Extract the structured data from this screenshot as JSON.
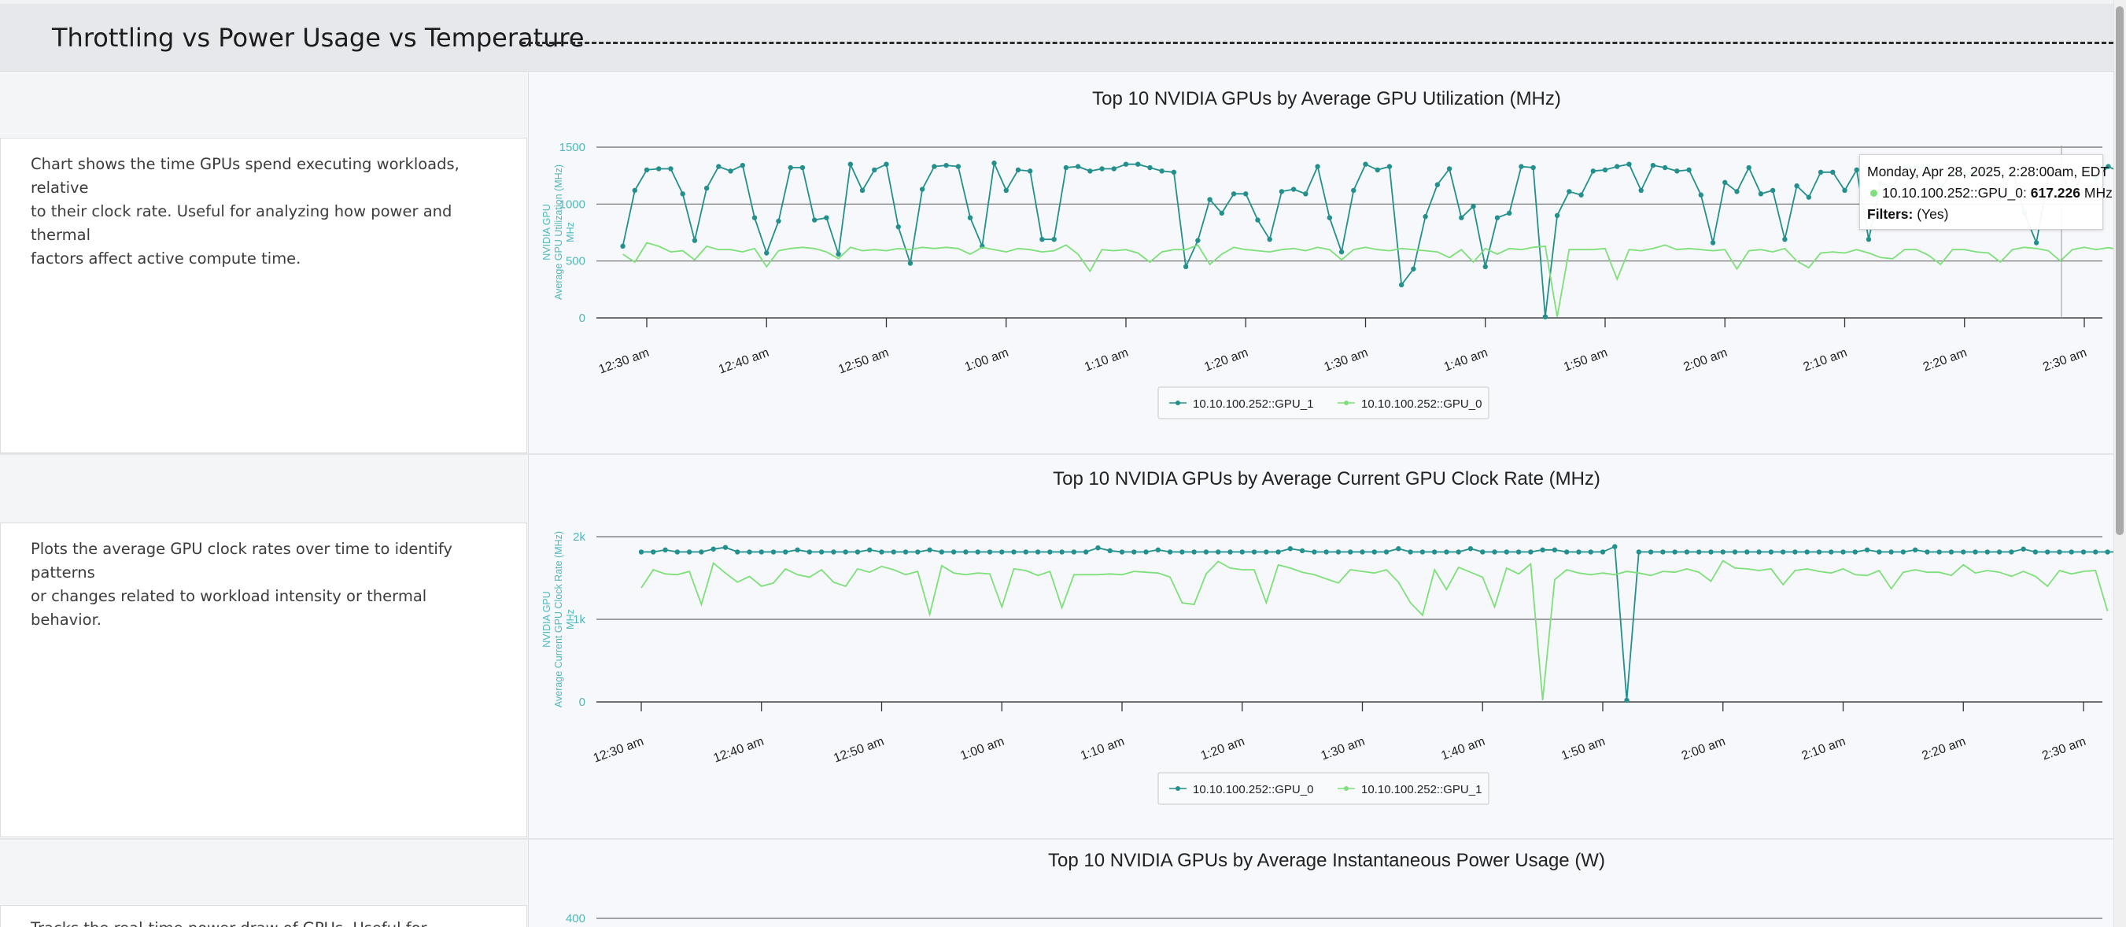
{
  "section": {
    "title": "Throttling vs Power Usage vs Temperature"
  },
  "colors": {
    "series_dark": "#23908e",
    "series_light": "#7ee07a",
    "axis_text": "#4fb7bd",
    "gridline": "#555555"
  },
  "panels": [
    {
      "description": "Chart shows the time GPUs spend executing workloads, relative to their clock rate. Useful for analyzing how power and thermal factors affect active compute time.",
      "description_lines": [
        "Chart shows the time GPUs spend executing workloads, relative",
        "to their clock rate. Useful for analyzing how power and thermal",
        "factors affect active compute time."
      ]
    },
    {
      "description": "Plots the average GPU clock rates over time to identify patterns or changes related to workload intensity or thermal behavior.",
      "description_lines": [
        "Plots the average GPU clock rates over time to identify patterns",
        "or changes related to workload intensity or thermal behavior."
      ]
    },
    {
      "description": "Tracks the real-time power draw of GPUs. Useful for assessing",
      "description_lines": [
        "Tracks the real-time power draw of GPUs. Useful for assessing"
      ]
    }
  ],
  "tooltip": {
    "date": "Monday, Apr 28, 2025, 2:28:00am, EDT",
    "series_label": "10.10.100.252::GPU_0: ",
    "value": "617.226",
    "unit": " MHz",
    "filters_label": "Filters:",
    "filters_value": " (Yes)"
  },
  "chart_data": [
    {
      "type": "line",
      "title": "Top 10 NVIDIA GPUs by Average GPU Utilization (MHz)",
      "ylabel_lines": [
        "NVIDIA GPU",
        "Average GPU Utilization (MHz)",
        "MHz"
      ],
      "ylim": [
        0,
        1500
      ],
      "yticks": [
        0,
        500,
        1000,
        1500
      ],
      "ytick_labels": [
        "0",
        "500",
        "1000",
        "1500"
      ],
      "x_start": "12:28 am",
      "x_step_minutes": 1,
      "x_tick_labels": [
        "12:30 am",
        "12:40 am",
        "12:50 am",
        "1:00 am",
        "1:10 am",
        "1:20 am",
        "1:30 am",
        "1:40 am",
        "1:50 am",
        "2:00 am",
        "2:10 am",
        "2:20 am",
        "2:30 am"
      ],
      "legend": [
        "10.10.100.252::GPU_1",
        "10.10.100.252::GPU_0"
      ],
      "series": [
        {
          "name": "10.10.100.252::GPU_1",
          "color": "#23908e",
          "markers": true,
          "values": [
            630,
            1120,
            1300,
            1310,
            1310,
            1090,
            680,
            1140,
            1330,
            1290,
            1340,
            880,
            570,
            850,
            1320,
            1320,
            860,
            880,
            560,
            1350,
            1120,
            1300,
            1350,
            800,
            480,
            1130,
            1330,
            1340,
            1330,
            880,
            630,
            1360,
            1120,
            1300,
            1290,
            690,
            690,
            1320,
            1330,
            1290,
            1310,
            1310,
            1350,
            1350,
            1320,
            1290,
            1280,
            450,
            680,
            1040,
            920,
            1090,
            1090,
            860,
            690,
            1110,
            1130,
            1090,
            1330,
            880,
            580,
            1120,
            1350,
            1300,
            1330,
            290,
            430,
            890,
            1170,
            1310,
            880,
            980,
            450,
            880,
            920,
            1330,
            1320,
            10,
            900,
            1110,
            1080,
            1290,
            1300,
            1330,
            1350,
            1120,
            1340,
            1320,
            1290,
            1300,
            1080,
            660,
            1190,
            1110,
            1320,
            1090,
            1120,
            690,
            1160,
            1060,
            1280,
            1280,
            1120,
            1300,
            690,
            1180,
            1150,
            1320,
            1320,
            1330,
            1140,
            1280,
            1270,
            1280,
            1290,
            1060,
            1300,
            920,
            660,
            1250,
            1290,
            1080,
            1300,
            1230,
            1330,
            1280,
            1300,
            930,
            340
          ]
        },
        {
          "name": "10.10.100.252::GPU_0",
          "color": "#7ee07a",
          "markers": false,
          "values": [
            560,
            490,
            660,
            630,
            580,
            590,
            510,
            630,
            600,
            600,
            580,
            610,
            450,
            590,
            610,
            620,
            610,
            580,
            520,
            620,
            590,
            600,
            590,
            610,
            600,
            620,
            610,
            620,
            610,
            560,
            620,
            600,
            580,
            610,
            600,
            580,
            590,
            640,
            560,
            410,
            600,
            590,
            600,
            570,
            490,
            580,
            600,
            600,
            640,
            470,
            560,
            620,
            600,
            590,
            580,
            600,
            610,
            590,
            620,
            600,
            510,
            600,
            620,
            600,
            590,
            610,
            600,
            590,
            580,
            530,
            600,
            490,
            610,
            560,
            610,
            600,
            620,
            630,
            10,
            600,
            600,
            600,
            610,
            340,
            600,
            590,
            610,
            640,
            600,
            610,
            600,
            590,
            600,
            430,
            590,
            600,
            580,
            610,
            500,
            440,
            570,
            580,
            570,
            600,
            570,
            530,
            520,
            600,
            600,
            550,
            470,
            600,
            600,
            580,
            570,
            490,
            600,
            620,
            610,
            590,
            500,
            600,
            620,
            600,
            617,
            600
          ]
        }
      ]
    },
    {
      "type": "line",
      "title": "Top 10 NVIDIA GPUs by Average Current GPU Clock Rate (MHz)",
      "ylabel_lines": [
        "NVIDIA GPU",
        "Average Current GPU Clock Rate (MHz)",
        "MHz"
      ],
      "ylim": [
        0,
        2000
      ],
      "yticks": [
        0,
        1000,
        2000
      ],
      "ytick_labels": [
        "0",
        "1k",
        "2k"
      ],
      "x_start": "12:30 am",
      "x_step_minutes": 1,
      "x_tick_labels": [
        "12:30 am",
        "12:40 am",
        "12:50 am",
        "1:00 am",
        "1:10 am",
        "1:20 am",
        "1:30 am",
        "1:40 am",
        "1:50 am",
        "2:00 am",
        "2:10 am",
        "2:20 am",
        "2:30 am"
      ],
      "legend": [
        "10.10.100.252::GPU_0",
        "10.10.100.252::GPU_1"
      ],
      "series": [
        {
          "name": "10.10.100.252::GPU_0",
          "color": "#23908e",
          "markers": true,
          "values": [
            1815,
            1815,
            1840,
            1815,
            1815,
            1815,
            1850,
            1870,
            1815,
            1815,
            1815,
            1815,
            1815,
            1840,
            1815,
            1815,
            1815,
            1815,
            1815,
            1840,
            1815,
            1815,
            1815,
            1815,
            1840,
            1815,
            1815,
            1815,
            1815,
            1815,
            1815,
            1815,
            1815,
            1815,
            1815,
            1815,
            1815,
            1815,
            1865,
            1830,
            1815,
            1815,
            1815,
            1840,
            1815,
            1815,
            1815,
            1815,
            1815,
            1815,
            1815,
            1815,
            1815,
            1815,
            1855,
            1830,
            1815,
            1815,
            1815,
            1815,
            1815,
            1815,
            1815,
            1855,
            1815,
            1815,
            1815,
            1815,
            1815,
            1855,
            1815,
            1815,
            1815,
            1815,
            1815,
            1840,
            1840,
            1815,
            1815,
            1815,
            1815,
            1880,
            20,
            1815,
            1815,
            1815,
            1815,
            1815,
            1815,
            1815,
            1815,
            1815,
            1815,
            1815,
            1815,
            1815,
            1815,
            1815,
            1815,
            1815,
            1815,
            1815,
            1840,
            1815,
            1815,
            1815,
            1840,
            1815,
            1815,
            1815,
            1815,
            1815,
            1815,
            1815,
            1815,
            1850,
            1815,
            1815,
            1815,
            1815,
            1815,
            1815,
            1815,
            1815,
            1815,
            1815,
            1815,
            1815,
            1815,
            1850
          ]
        },
        {
          "name": "10.10.100.252::GPU_1",
          "color": "#7ee07a",
          "markers": false,
          "values": [
            1380,
            1600,
            1550,
            1540,
            1580,
            1180,
            1680,
            1560,
            1450,
            1520,
            1400,
            1440,
            1610,
            1540,
            1510,
            1600,
            1450,
            1400,
            1610,
            1570,
            1640,
            1600,
            1540,
            1580,
            1060,
            1650,
            1560,
            1540,
            1560,
            1550,
            1150,
            1610,
            1590,
            1530,
            1580,
            1140,
            1540,
            1540,
            1540,
            1550,
            1540,
            1580,
            1570,
            1560,
            1510,
            1200,
            1180,
            1550,
            1700,
            1620,
            1600,
            1600,
            1200,
            1660,
            1620,
            1570,
            1540,
            1490,
            1440,
            1600,
            1580,
            1560,
            1600,
            1450,
            1200,
            1050,
            1600,
            1360,
            1630,
            1570,
            1510,
            1150,
            1620,
            1550,
            1670,
            20,
            1480,
            1600,
            1560,
            1540,
            1560,
            1540,
            1580,
            1560,
            1530,
            1580,
            1570,
            1610,
            1570,
            1460,
            1710,
            1620,
            1610,
            1590,
            1610,
            1420,
            1590,
            1610,
            1580,
            1560,
            1610,
            1540,
            1530,
            1590,
            1370,
            1570,
            1600,
            1570,
            1570,
            1530,
            1660,
            1560,
            1590,
            1570,
            1520,
            1580,
            1520,
            1400,
            1590,
            1550,
            1580,
            1590,
            1100
          ]
        }
      ]
    },
    {
      "type": "line",
      "title": "Top 10 NVIDIA GPUs by Average Instantaneous Power Usage (W)",
      "ylabel_lines": [],
      "ylim": [
        0,
        400
      ],
      "yticks": [
        400
      ],
      "ytick_labels": [
        "400"
      ],
      "x_tick_labels": [],
      "legend": [],
      "series": []
    }
  ]
}
